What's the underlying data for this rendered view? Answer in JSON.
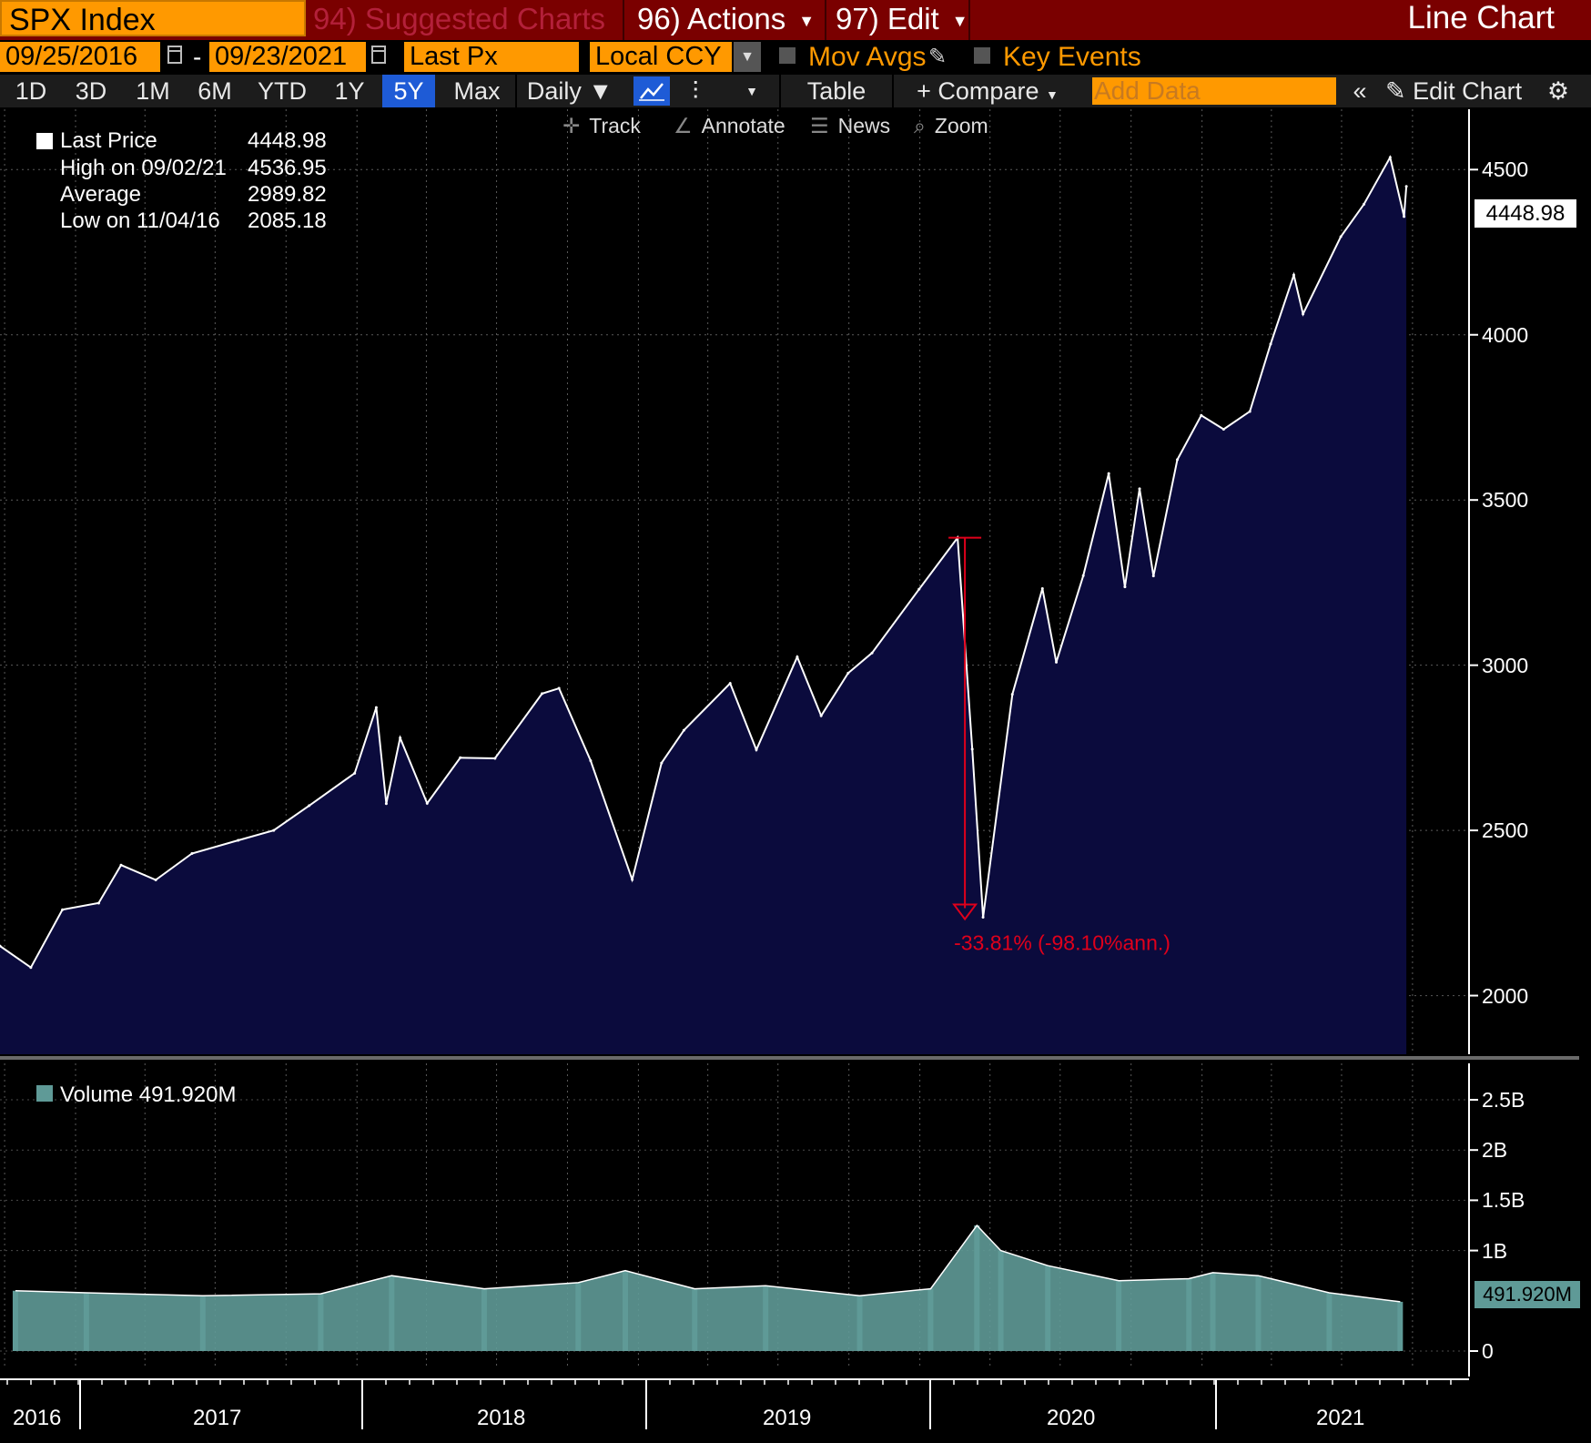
{
  "header": {
    "ticker": "SPX Index",
    "suggested": "94) Suggested Charts",
    "actions": "96) Actions",
    "edit": "97) Edit",
    "title": "Line Chart"
  },
  "settings": {
    "start_date": "09/25/2016",
    "end_date": "09/23/2021",
    "field": "Last Px",
    "currency": "Local CCY",
    "mov_avgs": "Mov Avgs",
    "key_events": "Key Events"
  },
  "toolbar": {
    "ranges": [
      "1D",
      "3D",
      "1M",
      "6M",
      "YTD",
      "1Y",
      "5Y",
      "Max"
    ],
    "active_range": "5Y",
    "frequency": "Daily",
    "table": "Table",
    "compare": "Compare",
    "add_data_placeholder": "Add Data",
    "edit_chart": "Edit Chart"
  },
  "tools": {
    "track": "Track",
    "annotate": "Annotate",
    "news": "News",
    "zoom": "Zoom"
  },
  "legend": {
    "last_price_label": "Last Price",
    "last_price": "4448.98",
    "high_label": "High on 09/02/21",
    "high": "4536.95",
    "average_label": "Average",
    "average": "2989.82",
    "low_label": "Low on 11/04/16",
    "low": "2085.18",
    "volume_label": "Volume 491.920M"
  },
  "colors": {
    "price_fill": "#0b0b3d",
    "price_line": "#ffffff",
    "volume_fill": "#5f9a97",
    "accent_orange": "#ff9900",
    "header_red": "#7a0000",
    "drawdown": "#e0001b"
  },
  "chart_data": [
    {
      "type": "area",
      "title": "SPX Index",
      "series": [
        {
          "name": "Last Price",
          "x": [
            "2016-09-25",
            "2016-11-04",
            "2016-12-15",
            "2017-01-31",
            "2017-03-01",
            "2017-04-15",
            "2017-06-01",
            "2017-07-31",
            "2017-09-15",
            "2017-10-31",
            "2017-12-29",
            "2018-01-26",
            "2018-02-08",
            "2018-02-26",
            "2018-04-02",
            "2018-05-15",
            "2018-06-29",
            "2018-08-29",
            "2018-09-20",
            "2018-10-31",
            "2018-12-24",
            "2019-01-31",
            "2019-03-01",
            "2019-04-30",
            "2019-06-03",
            "2019-07-26",
            "2019-08-26",
            "2019-09-30",
            "2019-10-31",
            "2019-12-31",
            "2020-02-19",
            "2020-03-09",
            "2020-03-23",
            "2020-04-30",
            "2020-06-08",
            "2020-06-26",
            "2020-07-31",
            "2020-09-02",
            "2020-09-23",
            "2020-10-12",
            "2020-10-30",
            "2020-11-30",
            "2020-12-31",
            "2021-01-29",
            "2021-03-04",
            "2021-03-31",
            "2021-04-30",
            "2021-05-12",
            "2021-06-30",
            "2021-07-30",
            "2021-09-02",
            "2021-09-20",
            "2021-09-23"
          ],
          "y": [
            2150,
            2085,
            2260,
            2280,
            2395,
            2350,
            2430,
            2470,
            2500,
            2575,
            2673,
            2872,
            2581,
            2780,
            2582,
            2720,
            2718,
            2914,
            2930,
            2711,
            2351,
            2704,
            2803,
            2945,
            2744,
            3025,
            2847,
            2976,
            3037,
            3230,
            3386,
            2746,
            2237,
            2912,
            3232,
            3009,
            3271,
            3580,
            3237,
            3534,
            3270,
            3622,
            3756,
            3714,
            3768,
            3972,
            4181,
            4063,
            4297,
            4395,
            4537,
            4358,
            4448.98
          ]
        }
      ],
      "ylim": [
        1850,
        4600
      ],
      "yticks": [
        2000,
        2500,
        3000,
        3500,
        4000,
        4500
      ],
      "xlabels": [
        "2016",
        "2017",
        "2018",
        "2019",
        "2020",
        "2021"
      ],
      "annotation": {
        "text": "-33.81% (-98.10%ann.)",
        "from_date": "2020-02-19",
        "to_date": "2020-03-23",
        "from": 3386,
        "to": 2237
      },
      "last_value_label": "4448.98",
      "grid": true
    },
    {
      "type": "bar",
      "title": "Volume",
      "series": [
        {
          "name": "Volume",
          "x": [
            "2016-10",
            "2017-01",
            "2017-06",
            "2017-11",
            "2018-02",
            "2018-06",
            "2018-10",
            "2018-12",
            "2019-03",
            "2019-06",
            "2019-10",
            "2020-01",
            "2020-03",
            "2020-04",
            "2020-06",
            "2020-09",
            "2020-12",
            "2021-01",
            "2021-03",
            "2021-06",
            "2021-09"
          ],
          "y": [
            0.6,
            0.58,
            0.55,
            0.57,
            0.75,
            0.62,
            0.68,
            0.8,
            0.62,
            0.65,
            0.55,
            0.62,
            1.25,
            1.0,
            0.85,
            0.7,
            0.72,
            0.78,
            0.75,
            0.58,
            0.49
          ]
        }
      ],
      "unit": "B",
      "ylim": [
        0,
        2.5
      ],
      "yticks": [
        "0",
        "1B",
        "1.5B",
        "2B",
        "2.5B"
      ],
      "last_value_label": "491.920M"
    }
  ]
}
